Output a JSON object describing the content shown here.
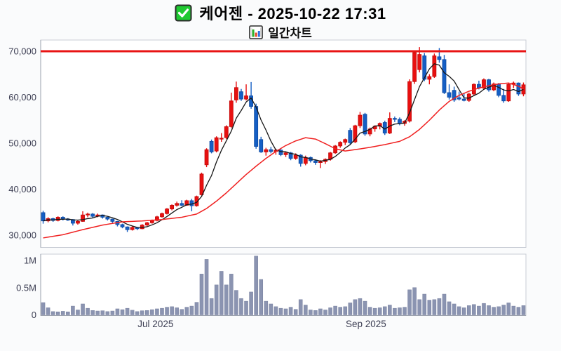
{
  "header": {
    "title": "케어젠 - 2025-10-22 17:31",
    "subtitle": "일간차트",
    "checkbox_icon": "checked-checkbox",
    "chart_icon": "mini-bar-chart"
  },
  "colors": {
    "up": "#e81010",
    "up_border": "#c20a0a",
    "down": "#155fc5",
    "down_border": "#0f4aa0",
    "ma_fast": "#161616",
    "ma_slow": "#f02020",
    "resistance": "#e81414",
    "volume_bar": "#8b94b1",
    "volume_bar_border": "#7d86a4",
    "axis_text": "#3b3d52",
    "plot_border": "#c9cdd5",
    "axis_line": "#9ba1ad",
    "plot_bg": "#ffffff",
    "page_bg": "#fafbfc",
    "checkbox_green": "#1fc931",
    "icon_bar_green": "#2db52d",
    "icon_bar_red": "#e8492b",
    "icon_bar_blue": "#2f6fe0"
  },
  "chart_data": {
    "type": "candlestick",
    "title": "케어젠 - 2025-10-22 17:31",
    "subtitle": "일간차트",
    "legend_position": "none",
    "grid": false,
    "price_axis": {
      "range_label_min": 30000,
      "range_label_max": 70000,
      "ticks": [
        {
          "value": 70000,
          "label": "70,000"
        },
        {
          "value": 60000,
          "label": "60,000"
        },
        {
          "value": 50000,
          "label": "50,000"
        },
        {
          "value": 40000,
          "label": "40,000"
        },
        {
          "value": 30000,
          "label": "30,000"
        }
      ]
    },
    "volume_axis": {
      "ticks": [
        {
          "value": 1000000,
          "label": "1M"
        },
        {
          "value": 500000,
          "label": "0.5M"
        },
        {
          "value": 0,
          "label": "0"
        }
      ]
    },
    "x_axis": {
      "labels": [
        {
          "text": "Jul 2025",
          "index": 22.7
        },
        {
          "text": "Sep 2025",
          "index": 65.2
        }
      ]
    },
    "resistance_line": 70000,
    "last_price": 62700,
    "candles": [
      [
        34900,
        35300,
        32500,
        33100
      ],
      [
        33100,
        33900,
        32800,
        33600
      ],
      [
        33600,
        33800,
        32900,
        33200
      ],
      [
        33200,
        34100,
        33000,
        33900
      ],
      [
        33900,
        34100,
        33200,
        33500
      ],
      [
        33500,
        33700,
        33100,
        33400
      ],
      [
        33400,
        33500,
        32100,
        32600
      ],
      [
        32600,
        33200,
        32300,
        33000
      ],
      [
        33000,
        35200,
        32900,
        34400
      ],
      [
        34400,
        34900,
        33900,
        34600
      ],
      [
        34600,
        34800,
        33800,
        34100
      ],
      [
        34100,
        34700,
        33900,
        34400
      ],
      [
        34400,
        34500,
        33600,
        33900
      ],
      [
        33900,
        34000,
        33200,
        33500
      ],
      [
        33500,
        33600,
        32700,
        33000
      ],
      [
        33000,
        33100,
        31900,
        32300
      ],
      [
        32300,
        32500,
        31500,
        31800
      ],
      [
        31800,
        31900,
        30700,
        31200
      ],
      [
        31200,
        32000,
        31000,
        31700
      ],
      [
        31700,
        31800,
        31100,
        31400
      ],
      [
        31400,
        32400,
        31300,
        32200
      ],
      [
        32200,
        32900,
        32000,
        32700
      ],
      [
        32700,
        33400,
        32500,
        33200
      ],
      [
        33200,
        34200,
        33000,
        34000
      ],
      [
        34000,
        34900,
        33800,
        34700
      ],
      [
        34700,
        35900,
        34500,
        35700
      ],
      [
        35700,
        36700,
        35400,
        36500
      ],
      [
        36500,
        37300,
        36200,
        36900
      ],
      [
        36900,
        37600,
        36300,
        36500
      ],
      [
        36500,
        37700,
        36400,
        37500
      ],
      [
        37500,
        37900,
        35200,
        36400
      ],
      [
        36400,
        38600,
        36200,
        38400
      ],
      [
        38800,
        43600,
        38600,
        43300
      ],
      [
        45300,
        48900,
        44800,
        48600
      ],
      [
        50400,
        50800,
        47800,
        48100
      ],
      [
        48300,
        51500,
        48000,
        51200
      ],
      [
        50900,
        52200,
        50300,
        51100
      ],
      [
        51200,
        53900,
        50900,
        53600
      ],
      [
        53600,
        61000,
        53300,
        59200
      ],
      [
        59400,
        63400,
        58800,
        62100
      ],
      [
        61200,
        61800,
        59200,
        59600
      ],
      [
        59600,
        62800,
        59300,
        60300
      ],
      [
        60300,
        63300,
        57500,
        58000
      ],
      [
        58000,
        58600,
        48800,
        49300
      ],
      [
        50800,
        51400,
        47900,
        48100
      ],
      [
        48100,
        49000,
        47300,
        48600
      ],
      [
        48600,
        49200,
        47800,
        48200
      ],
      [
        48200,
        48800,
        47500,
        48500
      ],
      [
        48500,
        48700,
        47200,
        47500
      ],
      [
        47500,
        48200,
        47000,
        47900
      ],
      [
        47900,
        48100,
        46300,
        46700
      ],
      [
        46700,
        47800,
        46400,
        47400
      ],
      [
        47400,
        47600,
        44900,
        45600
      ],
      [
        45600,
        47300,
        45200,
        46900
      ],
      [
        46900,
        47100,
        45800,
        46200
      ],
      [
        46200,
        46500,
        45300,
        45800
      ],
      [
        45800,
        46300,
        44600,
        46000
      ],
      [
        46000,
        46700,
        45500,
        46500
      ],
      [
        46500,
        48100,
        46200,
        47900
      ],
      [
        47900,
        49600,
        47700,
        49400
      ],
      [
        49400,
        50400,
        49000,
        50200
      ],
      [
        50200,
        51000,
        49600,
        50800
      ],
      [
        52800,
        53300,
        49700,
        50100
      ],
      [
        50300,
        54000,
        50000,
        53800
      ],
      [
        53800,
        56800,
        53300,
        56100
      ],
      [
        56300,
        56600,
        51600,
        52000
      ],
      [
        52000,
        53400,
        51500,
        53100
      ],
      [
        53100,
        53900,
        52500,
        53700
      ],
      [
        53700,
        54500,
        53000,
        54300
      ],
      [
        54500,
        54900,
        51800,
        52200
      ],
      [
        52200,
        56700,
        52000,
        55400
      ],
      [
        55400,
        55800,
        54600,
        55200
      ],
      [
        55200,
        55600,
        53900,
        54300
      ],
      [
        54300,
        55000,
        53800,
        54800
      ],
      [
        54800,
        63900,
        54500,
        63400
      ],
      [
        63400,
        70000,
        62900,
        69700
      ],
      [
        66000,
        70900,
        65400,
        69300
      ],
      [
        69000,
        69600,
        63500,
        63900
      ],
      [
        63900,
        65000,
        62800,
        64500
      ],
      [
        64500,
        69500,
        64200,
        69000
      ],
      [
        68800,
        70700,
        67500,
        68200
      ],
      [
        68200,
        69200,
        60700,
        61000
      ],
      [
        61000,
        62800,
        59500,
        60000
      ],
      [
        61500,
        62300,
        59000,
        59400
      ],
      [
        59900,
        61200,
        59300,
        59600
      ],
      [
        59600,
        60800,
        59100,
        59300
      ],
      [
        59300,
        61000,
        59000,
        60700
      ],
      [
        60700,
        63000,
        60300,
        62800
      ],
      [
        62800,
        63600,
        61700,
        62000
      ],
      [
        62000,
        64100,
        61800,
        63800
      ],
      [
        63800,
        64000,
        61200,
        61600
      ],
      [
        61600,
        63200,
        61300,
        62900
      ],
      [
        62900,
        63100,
        60000,
        60400
      ],
      [
        60400,
        61800,
        58800,
        59200
      ],
      [
        59200,
        63100,
        59000,
        62800
      ],
      [
        62800,
        63400,
        62000,
        63100
      ],
      [
        63100,
        63200,
        60300,
        60700
      ],
      [
        60700,
        63200,
        60200,
        62700
      ]
    ],
    "volumes": [
      225000,
      130000,
      60000,
      55000,
      65000,
      55000,
      160000,
      90000,
      200000,
      120000,
      80000,
      70000,
      75000,
      60000,
      70000,
      110000,
      95000,
      120000,
      85000,
      60000,
      75000,
      80000,
      95000,
      110000,
      120000,
      140000,
      150000,
      130000,
      100000,
      140000,
      160000,
      230000,
      750000,
      1020000,
      300000,
      550000,
      800000,
      550000,
      750000,
      450000,
      300000,
      250000,
      420000,
      1080000,
      650000,
      250000,
      200000,
      150000,
      120000,
      110000,
      140000,
      100000,
      280000,
      180000,
      90000,
      80000,
      110000,
      90000,
      130000,
      160000,
      140000,
      150000,
      220000,
      280000,
      300000,
      250000,
      140000,
      120000,
      130000,
      150000,
      180000,
      120000,
      130000,
      140000,
      460000,
      500000,
      280000,
      380000,
      270000,
      280000,
      300000,
      380000,
      240000,
      200000,
      150000,
      130000,
      170000,
      190000,
      160000,
      210000,
      170000,
      140000,
      150000,
      180000,
      220000,
      160000,
      140000,
      170000
    ],
    "ma_fast_period": 5,
    "ma_slow_points": [
      [
        0,
        29400
      ],
      [
        4,
        30100
      ],
      [
        8,
        31200
      ],
      [
        12,
        32200
      ],
      [
        16,
        32900
      ],
      [
        20,
        33100
      ],
      [
        24,
        33400
      ],
      [
        28,
        33900
      ],
      [
        31,
        34600
      ],
      [
        33,
        35800
      ],
      [
        35,
        37400
      ],
      [
        37,
        39200
      ],
      [
        39,
        41200
      ],
      [
        41,
        43200
      ],
      [
        43,
        45000
      ],
      [
        45,
        46700
      ],
      [
        47,
        48200
      ],
      [
        49,
        49500
      ],
      [
        51,
        50500
      ],
      [
        53,
        51200
      ],
      [
        55,
        50900
      ],
      [
        57,
        49900
      ],
      [
        59,
        48800
      ],
      [
        61,
        48300
      ],
      [
        63,
        48600
      ],
      [
        66,
        49100
      ],
      [
        69,
        49700
      ],
      [
        72,
        50400
      ],
      [
        74,
        51400
      ],
      [
        76,
        53000
      ],
      [
        78,
        55000
      ],
      [
        80,
        57200
      ],
      [
        82,
        59100
      ],
      [
        84,
        60400
      ],
      [
        86,
        61300
      ],
      [
        88,
        62000
      ],
      [
        90,
        62500
      ],
      [
        92,
        62900
      ],
      [
        94,
        63100
      ],
      [
        96,
        62400
      ],
      [
        97,
        61800
      ]
    ]
  }
}
